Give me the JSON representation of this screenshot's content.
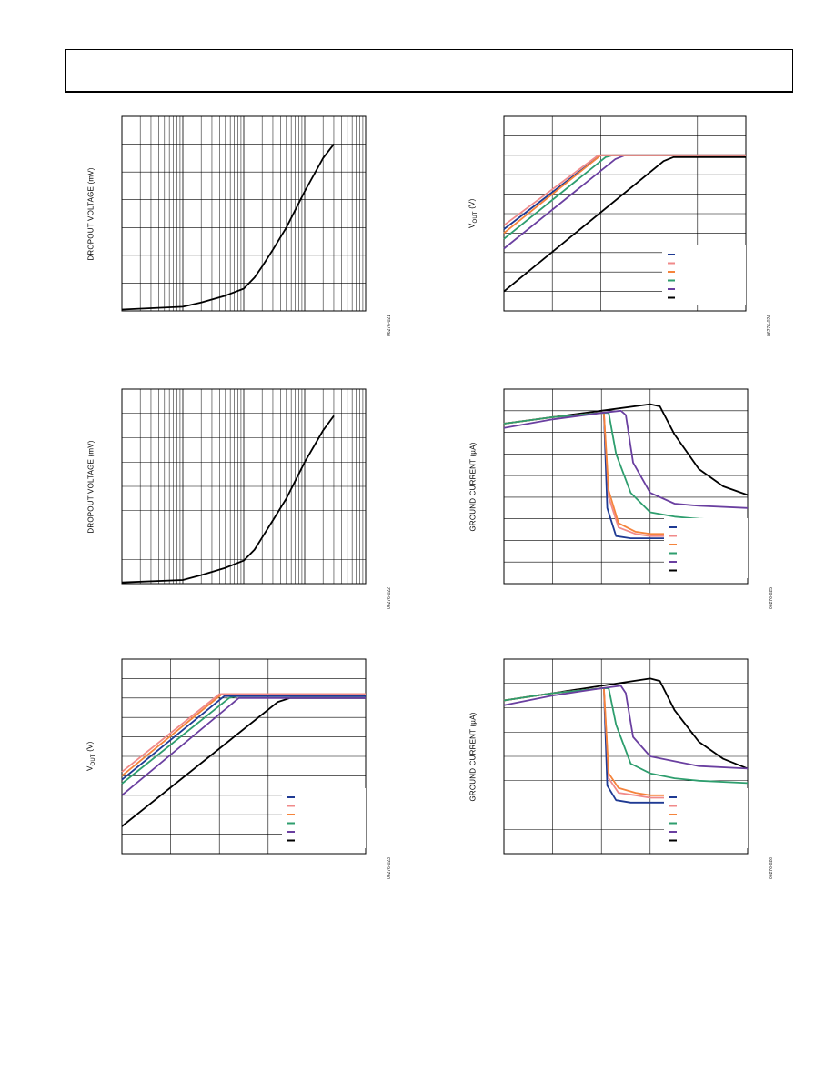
{
  "page": {
    "header": ""
  },
  "colors": {
    "navy": "#1f3a93",
    "pink": "#f08a8a",
    "orange": "#f5843c",
    "green": "#2e9e6e",
    "purple": "#6a3fa0",
    "black": "#000000"
  },
  "chart_data": [
    {
      "id": "c1",
      "type": "line",
      "ylabel": "DROPOUT VOLTAGE (mV)",
      "ylabel_sub": "",
      "figure_id": "06276-021",
      "xscale": "log",
      "xlim": [
        0.1,
        1000
      ],
      "ylim": [
        0,
        7
      ],
      "legend": [],
      "series": [
        {
          "color": "black",
          "x": [
            0.1,
            1,
            2,
            5,
            10,
            15,
            20,
            30,
            50,
            100,
            200,
            300
          ],
          "y": [
            0.05,
            0.15,
            0.3,
            0.55,
            0.8,
            1.2,
            1.6,
            2.2,
            3.0,
            4.3,
            5.5,
            6.0
          ]
        }
      ]
    },
    {
      "id": "c2",
      "type": "line",
      "ylabel": "V",
      "ylabel_sub": "OUT",
      "ylabel_tail": " (V)",
      "figure_id": "06276-024",
      "xscale": "linear",
      "xlim": [
        0,
        5
      ],
      "ylim": [
        0,
        10
      ],
      "legend": [
        "navy",
        "pink",
        "orange",
        "green",
        "purple",
        "black"
      ],
      "series": [
        {
          "color": "black",
          "x": [
            0,
            3.3,
            3.5,
            5
          ],
          "y": [
            1.0,
            7.7,
            7.9,
            7.9
          ]
        },
        {
          "color": "purple",
          "x": [
            0,
            2.3,
            2.5,
            5
          ],
          "y": [
            3.2,
            7.8,
            8.0,
            8.0
          ]
        },
        {
          "color": "green",
          "x": [
            0,
            2.1,
            2.25,
            5
          ],
          "y": [
            3.7,
            7.9,
            8.0,
            8.0
          ]
        },
        {
          "color": "navy",
          "x": [
            0,
            2.0,
            2.15,
            5
          ],
          "y": [
            4.2,
            8.0,
            8.0,
            8.0
          ]
        },
        {
          "color": "orange",
          "x": [
            0,
            2.0,
            2.15,
            5
          ],
          "y": [
            4.0,
            8.0,
            8.0,
            8.0
          ]
        },
        {
          "color": "pink",
          "x": [
            0,
            1.95,
            2.1,
            5
          ],
          "y": [
            4.4,
            8.0,
            8.0,
            8.0
          ]
        }
      ]
    },
    {
      "id": "c3",
      "type": "line",
      "ylabel": "DROPOUT VOLTAGE (mV)",
      "ylabel_sub": "",
      "figure_id": "06276-022",
      "xscale": "log",
      "xlim": [
        0.1,
        1000
      ],
      "ylim": [
        0,
        8
      ],
      "legend": [],
      "series": [
        {
          "color": "black",
          "x": [
            0.1,
            1,
            2,
            5,
            10,
            15,
            20,
            30,
            50,
            100,
            200,
            300
          ],
          "y": [
            0.05,
            0.15,
            0.35,
            0.65,
            0.95,
            1.4,
            1.9,
            2.6,
            3.5,
            5.0,
            6.3,
            6.9
          ]
        }
      ]
    },
    {
      "id": "c4",
      "type": "line",
      "ylabel": "GROUND CURRENT (µA)",
      "ylabel_sub": "",
      "figure_id": "06276-025",
      "xscale": "linear",
      "xlim": [
        0,
        5
      ],
      "ylim": [
        0,
        9
      ],
      "legend": [
        "navy",
        "pink",
        "orange",
        "green",
        "purple",
        "black"
      ],
      "series": [
        {
          "color": "black",
          "x": [
            0,
            1,
            2,
            3,
            3.2,
            3.5,
            4,
            4.5,
            5
          ],
          "y": [
            7.4,
            7.7,
            8.0,
            8.3,
            8.2,
            6.9,
            5.3,
            4.5,
            4.1
          ]
        },
        {
          "color": "navy",
          "x": [
            0,
            1,
            2,
            2.05,
            2.12,
            2.3,
            2.6,
            3,
            5
          ],
          "y": [
            7.4,
            7.7,
            7.9,
            7.9,
            3.5,
            2.2,
            2.1,
            2.1,
            2.1
          ]
        },
        {
          "color": "pink",
          "x": [
            0,
            1,
            2,
            2.05,
            2.15,
            2.35,
            2.7,
            3,
            5
          ],
          "y": [
            7.4,
            7.7,
            7.9,
            7.9,
            4.0,
            2.6,
            2.3,
            2.2,
            2.2
          ]
        },
        {
          "color": "orange",
          "x": [
            0,
            1,
            2,
            2.05,
            2.15,
            2.35,
            2.7,
            3,
            5
          ],
          "y": [
            7.4,
            7.7,
            7.9,
            7.9,
            4.3,
            2.8,
            2.4,
            2.3,
            2.3
          ]
        },
        {
          "color": "green",
          "x": [
            0,
            1,
            2,
            2.15,
            2.3,
            2.6,
            3.0,
            3.5,
            4,
            5
          ],
          "y": [
            7.4,
            7.7,
            7.9,
            7.9,
            6.0,
            4.2,
            3.3,
            3.1,
            3.0,
            2.9
          ]
        },
        {
          "color": "purple",
          "x": [
            0,
            1,
            2,
            2.4,
            2.5,
            2.65,
            3.0,
            3.5,
            4,
            5
          ],
          "y": [
            7.2,
            7.6,
            7.9,
            8.0,
            7.8,
            5.6,
            4.2,
            3.7,
            3.6,
            3.5
          ]
        }
      ]
    },
    {
      "id": "c5",
      "type": "line",
      "ylabel": "V",
      "ylabel_sub": "OUT",
      "ylabel_tail": " (V)",
      "figure_id": "06276-023",
      "xscale": "linear",
      "xlim": [
        0,
        5
      ],
      "ylim": [
        0,
        10
      ],
      "legend": [
        "navy",
        "pink",
        "orange",
        "green",
        "purple",
        "black"
      ],
      "series": [
        {
          "color": "black",
          "x": [
            0,
            3.2,
            3.45,
            5
          ],
          "y": [
            1.4,
            7.8,
            8.0,
            8.0
          ]
        },
        {
          "color": "purple",
          "x": [
            0,
            2.4,
            2.55,
            5
          ],
          "y": [
            3.0,
            8.0,
            8.0,
            8.0
          ]
        },
        {
          "color": "green",
          "x": [
            0,
            2.2,
            2.35,
            5
          ],
          "y": [
            3.6,
            8.0,
            8.1,
            8.1
          ]
        },
        {
          "color": "navy",
          "x": [
            0,
            2.1,
            2.25,
            5
          ],
          "y": [
            3.8,
            8.1,
            8.1,
            8.1
          ]
        },
        {
          "color": "orange",
          "x": [
            0,
            2.05,
            2.2,
            5
          ],
          "y": [
            4.0,
            8.2,
            8.2,
            8.2
          ]
        },
        {
          "color": "pink",
          "x": [
            0,
            2.0,
            2.15,
            5
          ],
          "y": [
            4.2,
            8.2,
            8.2,
            8.2
          ]
        }
      ]
    },
    {
      "id": "c6",
      "type": "line",
      "ylabel": "GROUND CURRENT (µA)",
      "ylabel_sub": "",
      "figure_id": "06276-026",
      "xscale": "linear",
      "xlim": [
        0,
        5
      ],
      "ylim": [
        0,
        8
      ],
      "legend": [
        "navy",
        "pink",
        "orange",
        "green",
        "purple",
        "black"
      ],
      "series": [
        {
          "color": "black",
          "x": [
            0,
            1,
            2,
            3,
            3.2,
            3.5,
            4,
            4.5,
            5
          ],
          "y": [
            6.3,
            6.6,
            6.9,
            7.2,
            7.1,
            5.9,
            4.6,
            3.9,
            3.5
          ]
        },
        {
          "color": "navy",
          "x": [
            0,
            1,
            2,
            2.05,
            2.12,
            2.3,
            2.6,
            3,
            5
          ],
          "y": [
            6.3,
            6.6,
            6.8,
            6.8,
            2.8,
            2.2,
            2.1,
            2.1,
            2.1
          ]
        },
        {
          "color": "pink",
          "x": [
            0,
            1,
            2,
            2.05,
            2.15,
            2.35,
            2.7,
            3,
            5
          ],
          "y": [
            6.3,
            6.6,
            6.8,
            6.8,
            3.1,
            2.5,
            2.4,
            2.3,
            2.3
          ]
        },
        {
          "color": "orange",
          "x": [
            0,
            1,
            2,
            2.05,
            2.15,
            2.35,
            2.7,
            3,
            5
          ],
          "y": [
            6.3,
            6.6,
            6.8,
            6.8,
            3.3,
            2.7,
            2.5,
            2.4,
            2.4
          ]
        },
        {
          "color": "green",
          "x": [
            0,
            1,
            2,
            2.15,
            2.3,
            2.6,
            3.0,
            3.5,
            4,
            5
          ],
          "y": [
            6.3,
            6.6,
            6.8,
            6.8,
            5.3,
            3.7,
            3.3,
            3.1,
            3.0,
            2.9
          ]
        },
        {
          "color": "purple",
          "x": [
            0,
            1,
            2,
            2.4,
            2.5,
            2.65,
            3.0,
            3.5,
            4,
            5
          ],
          "y": [
            6.1,
            6.5,
            6.8,
            6.9,
            6.6,
            4.8,
            4.0,
            3.8,
            3.6,
            3.5
          ]
        }
      ]
    }
  ]
}
